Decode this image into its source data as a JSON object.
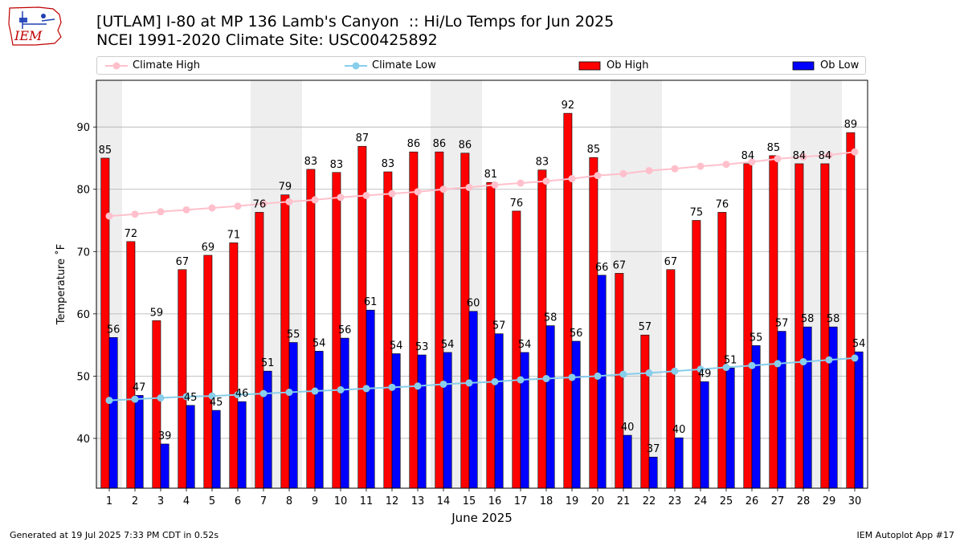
{
  "header": {
    "logo_text": "IEM",
    "title_line1": "[UTLAM] I-80 at MP 136 Lamb's Canyon  :: Hi/Lo Temps for Jun 2025",
    "title_line2": "NCEI 1991-2020 Climate Site: USC00425892"
  },
  "legend": {
    "climate_high": "Climate High",
    "climate_low": "Climate Low",
    "ob_high": "Ob High",
    "ob_low": "Ob Low"
  },
  "colors": {
    "ob_high": "#ff0000",
    "ob_low": "#0000ff",
    "climate_high": "#ffc0cb",
    "climate_low": "#87ceeb",
    "weekend_band": "#eeeeee",
    "grid": "#b0b0b0"
  },
  "footer": {
    "left": "Generated at 19 Jul 2025 7:33 PM CDT in 0.52s",
    "right": "IEM Autoplot App #17"
  },
  "chart_data": {
    "type": "bar",
    "xlabel": "June 2025",
    "ylabel": "Temperature ˚F",
    "ylim": [
      32,
      97.5
    ],
    "yticks": [
      40,
      50,
      60,
      70,
      80,
      90
    ],
    "grid": true,
    "legend_position": "top",
    "categories": [
      "1",
      "2",
      "3",
      "4",
      "5",
      "6",
      "7",
      "8",
      "9",
      "10",
      "11",
      "12",
      "13",
      "14",
      "15",
      "16",
      "17",
      "18",
      "19",
      "20",
      "21",
      "22",
      "23",
      "24",
      "25",
      "26",
      "27",
      "28",
      "29",
      "30"
    ],
    "weekend_days": [
      1,
      7,
      8,
      14,
      15,
      21,
      22,
      28,
      29
    ],
    "series": [
      {
        "name": "Ob High",
        "kind": "bar",
        "values": [
          85,
          72,
          59,
          67,
          69,
          71,
          76,
          79,
          83,
          83,
          87,
          83,
          86,
          86,
          86,
          81,
          76,
          83,
          92,
          85,
          67,
          57,
          67,
          75,
          76,
          84,
          85,
          84,
          84,
          89
        ],
        "bar_tops": [
          85.0,
          71.6,
          58.9,
          67.1,
          69.4,
          71.4,
          76.3,
          79.1,
          83.2,
          82.7,
          86.9,
          82.8,
          86.0,
          86.0,
          85.8,
          81.1,
          76.5,
          83.1,
          92.2,
          85.1,
          66.5,
          56.6,
          67.1,
          75.0,
          76.3,
          84.1,
          85.4,
          84.1,
          84.1,
          89.1
        ]
      },
      {
        "name": "Ob Low",
        "kind": "bar",
        "values": [
          56,
          47,
          39,
          45,
          45,
          46,
          51,
          55,
          54,
          56,
          61,
          54,
          53,
          54,
          60,
          57,
          54,
          58,
          56,
          66,
          40,
          37,
          40,
          49,
          51,
          55,
          57,
          58,
          58,
          54
        ],
        "bar_tops": [
          56.2,
          46.9,
          39.1,
          45.3,
          44.5,
          45.9,
          50.8,
          55.4,
          54.0,
          56.1,
          60.6,
          53.6,
          53.4,
          53.8,
          60.4,
          56.8,
          53.8,
          58.1,
          55.6,
          66.2,
          40.5,
          37.0,
          40.1,
          49.1,
          51.3,
          54.9,
          57.2,
          57.9,
          57.9,
          53.9
        ]
      },
      {
        "name": "Climate High",
        "kind": "line",
        "values": [
          75.7,
          76.0,
          76.4,
          76.7,
          77.0,
          77.3,
          77.7,
          78.0,
          78.3,
          78.7,
          79.0,
          79.3,
          79.6,
          80.0,
          80.3,
          80.7,
          81.0,
          81.3,
          81.7,
          82.2,
          82.5,
          83.0,
          83.3,
          83.7,
          84.0,
          84.4,
          84.9,
          85.2,
          85.5,
          86.0
        ]
      },
      {
        "name": "Climate Low",
        "kind": "line",
        "values": [
          46.1,
          46.3,
          46.5,
          46.7,
          46.8,
          47.0,
          47.2,
          47.4,
          47.6,
          47.8,
          48.0,
          48.2,
          48.4,
          48.7,
          48.9,
          49.1,
          49.4,
          49.6,
          49.8,
          50.0,
          50.3,
          50.5,
          50.8,
          51.1,
          51.4,
          51.7,
          52.0,
          52.3,
          52.6,
          52.9
        ]
      }
    ]
  }
}
